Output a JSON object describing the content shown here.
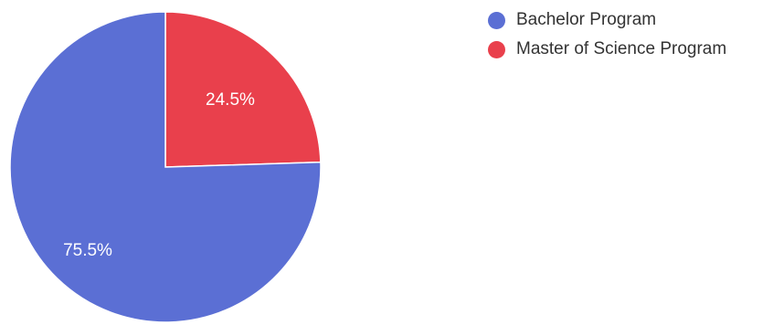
{
  "chart_data": {
    "type": "pie",
    "slices": [
      {
        "name": "Bachelor Program",
        "value": 75.5,
        "label": "75.5%",
        "color": "#5b6fd4"
      },
      {
        "name": "Master of Science Program",
        "value": 24.5,
        "label": "24.5%",
        "color": "#e9404c"
      }
    ],
    "legend_position": "top-right",
    "start_angle_deg": 0,
    "direction": "clockwise"
  }
}
